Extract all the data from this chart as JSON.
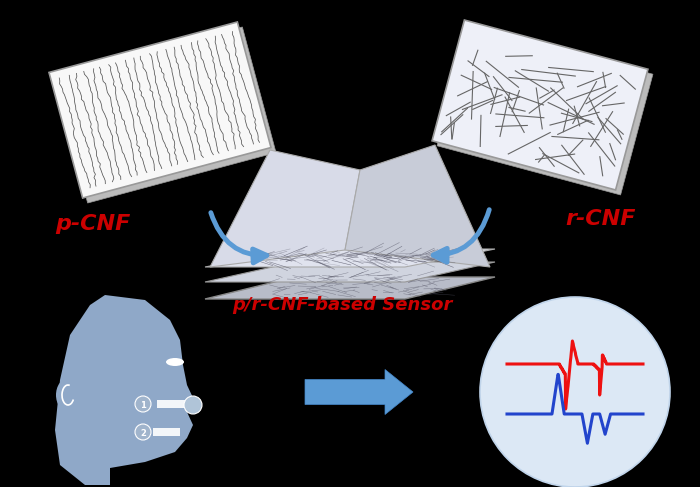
{
  "bg_color": "#000000",
  "label_pCNF": "p-CNF",
  "label_rCNF": "r-CNF",
  "label_sensor": "p/r-CNF-based Sensor",
  "label_color": "#cc0000",
  "arrow_color": "#5b9bd5",
  "face_color": "#8fa8c8",
  "circle_fill": "#dce8f5",
  "circle_outline": "#c0d4ea",
  "red_signal_color": "#ee1111",
  "blue_signal_color": "#2244cc",
  "pcnf_rect_fill": "#f8f8f8",
  "rcnf_rect_fill": "#eef0f8",
  "shadow_color": "#cccccc"
}
